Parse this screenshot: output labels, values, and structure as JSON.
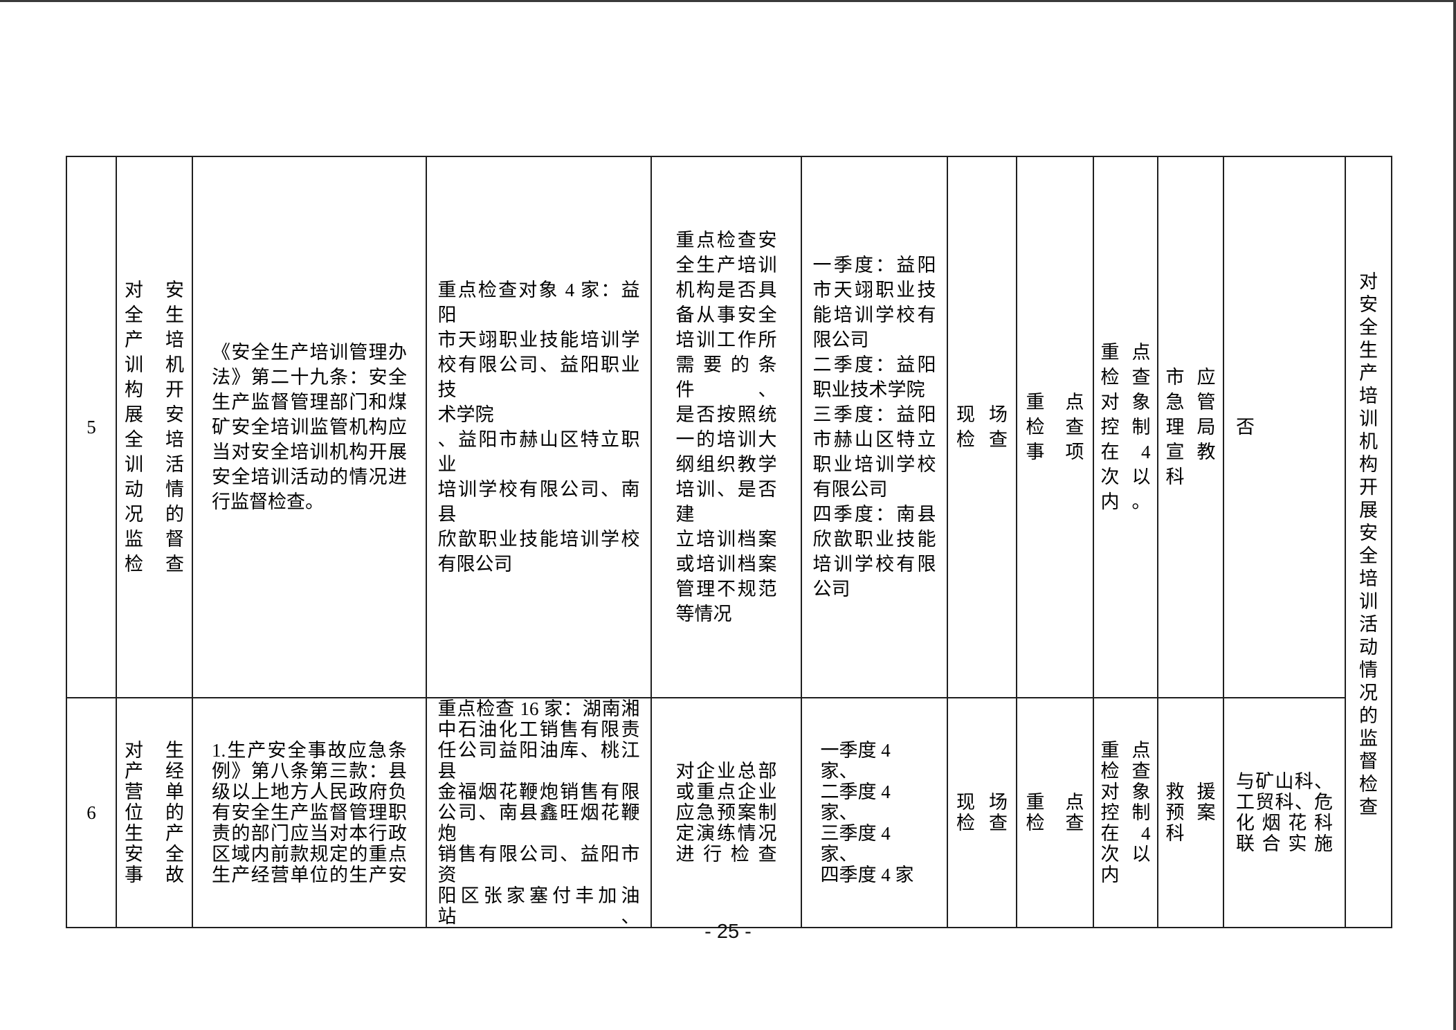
{
  "page": {
    "number": "- 25 -"
  },
  "table": {
    "rows": [
      {
        "seq": "5",
        "project": {
          "lines": [
            "对安",
            "全生",
            "产培",
            "训机",
            "构开",
            "展安",
            "全培",
            "训活",
            "动情",
            "况的",
            "监督",
            "检查"
          ]
        },
        "legal_basis": {
          "lines": [
            "《安全生产培训管理办",
            "法》第二十九条：安全",
            "生产监督管理部门和煤",
            "矿安全培训监管机构应",
            "当对安全培训机构开展",
            "安全培训活动的情况进",
            {
              "t": "行监督检查。",
              "end": true
            }
          ]
        },
        "targets": {
          "lines": [
            "重点检查对象 4 家：益阳",
            "市天翊职业技能培训学",
            "校有限公司、益阳职业技",
            {
              "t": "术学院",
              "end": true
            },
            "、益阳市赫山区特立职业",
            "培训学校有限公司、南县",
            "欣歆职业技能培训学校",
            {
              "t": "有限公司",
              "end": true
            }
          ]
        },
        "content": {
          "lines": [
            "重点检查安",
            "全生产培训",
            "机构是否具",
            "备从事安全",
            "培训工作所",
            "需要的条件、",
            "是否按照统",
            "一的培训大",
            "纲组织教学",
            "培训、是否建",
            "立培训档案",
            "或培训档案",
            "管理不规范",
            {
              "t": "等情况",
              "end": true
            }
          ]
        },
        "schedule": {
          "lines": [
            "一季度：益阳",
            "市天翊职业技",
            "能培训学校有",
            {
              "t": "限公司",
              "end": true
            },
            "二季度：益阳",
            {
              "t": "职业技术学院",
              "end": true
            },
            "三季度：益阳",
            "市赫山区特立",
            "职业培训学校",
            {
              "t": "有限公司",
              "end": true
            },
            "四季度：南县",
            "欣歆职业技能",
            "培训学校有限",
            {
              "t": "公司",
              "end": true
            }
          ]
        },
        "method": {
          "lines": [
            "现场",
            "检查"
          ]
        },
        "key_items": {
          "lines": [
            "重点",
            "检查",
            "事项"
          ]
        },
        "frequency": {
          "lines": [
            "重点",
            "检查",
            "对象",
            "控制",
            "在 4",
            "次以",
            "内。"
          ]
        },
        "department": {
          "lines": [
            "市应",
            "急管",
            "理局",
            "宣教",
            "科"
          ]
        },
        "remark": {
          "lines": [
            {
              "t": "否",
              "end": true
            }
          ]
        },
        "side_note": "对安全生产培训机构开展安全培训活动情况的监督检查"
      },
      {
        "seq": "6",
        "project": {
          "lines": [
            "对生",
            "产经",
            "营单",
            "位的",
            "生产",
            "安全",
            "事故"
          ]
        },
        "legal_basis": {
          "lines": [
            "1.生产安全事故应急条",
            "例》第八条第三款：县",
            "级以上地方人民政府负",
            "有安全生产监督管理职",
            "责的部门应当对本行政",
            "区域内前款规定的重点",
            "生产经营单位的生产安"
          ]
        },
        "targets": {
          "lines": [
            "重点检查 16 家：湖南湘",
            "中石油化工销售有限责",
            "任公司益阳油库、桃江县",
            "金福烟花鞭炮销售有限",
            "公司、南县鑫旺烟花鞭炮",
            "销售有限公司、益阳市资",
            "阳区张家塞付丰加油站、"
          ]
        },
        "content": {
          "lines": [
            "对企业总部",
            "或重点企业",
            "应急预案制",
            "定演练情况",
            "进行检查"
          ]
        },
        "schedule": {
          "lines": [
            "一季度 4 家、",
            "二季度 4 家、",
            "三季度 4 家、",
            "四季度 4 家"
          ]
        },
        "method": {
          "lines": [
            "现场",
            "检查"
          ]
        },
        "key_items": {
          "lines": [
            "重点",
            "检查"
          ]
        },
        "frequency": {
          "lines": [
            "重点",
            "检查",
            "对象",
            "控制",
            "在 4",
            "次以",
            "内"
          ]
        },
        "department": {
          "lines": [
            "救援",
            "预案",
            "科"
          ]
        },
        "remark": {
          "lines": [
            "与矿山科、",
            "工贸科、危",
            "化烟花科",
            "联合实施"
          ]
        }
      }
    ]
  }
}
